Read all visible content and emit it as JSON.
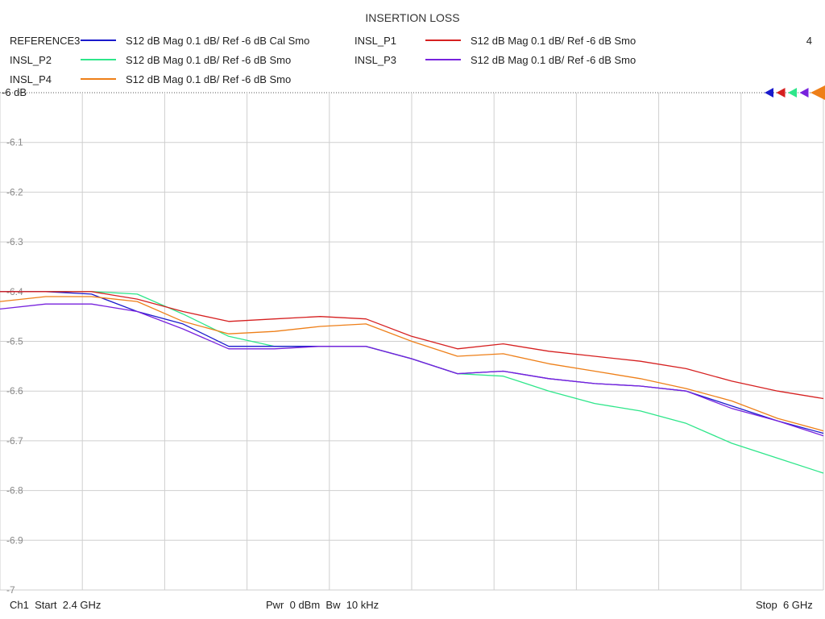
{
  "chart_data": {
    "type": "line",
    "title": "INSERTION LOSS",
    "channel_number": "4",
    "y_ticks": [
      "-6 dB",
      "-6.1",
      "-6.2",
      "-6.3",
      "-6.4",
      "-6.5",
      "-6.6",
      "-6.7",
      "-6.8",
      "-6.9",
      "-7"
    ],
    "ylim": [
      -7,
      -6
    ],
    "xlim": [
      2.4,
      6.0
    ],
    "x_unit": "GHz",
    "grid": true,
    "x_divisions": 10,
    "legend_position": "top",
    "x": [
      2.4,
      2.6,
      2.8,
      3.0,
      3.2,
      3.4,
      3.6,
      3.8,
      4.0,
      4.2,
      4.4,
      4.6,
      4.8,
      5.0,
      5.2,
      5.4,
      5.6,
      5.8,
      6.0
    ],
    "series": [
      {
        "name": "REFERENCE3",
        "trace": "S12  dB Mag  0.1 dB/ Ref -6 dB  Cal Smo",
        "color": "#1a1acc",
        "values": [
          -6.4,
          -6.4,
          -6.405,
          -6.44,
          -6.465,
          -6.51,
          -6.51,
          -6.51,
          -6.51,
          -6.535,
          -6.565,
          -6.56,
          -6.575,
          -6.585,
          -6.59,
          -6.6,
          -6.63,
          -6.66,
          -6.685
        ]
      },
      {
        "name": "INSL_P1",
        "trace": "S12  dB Mag  0.1 dB/ Ref -6 dB  Smo",
        "color": "#d62020",
        "values": [
          -6.4,
          -6.4,
          -6.4,
          -6.415,
          -6.44,
          -6.46,
          -6.455,
          -6.45,
          -6.455,
          -6.49,
          -6.515,
          -6.505,
          -6.52,
          -6.53,
          -6.54,
          -6.555,
          -6.58,
          -6.6,
          -6.615
        ]
      },
      {
        "name": "INSL_P2",
        "trace": "S12  dB Mag  0.1 dB/ Ref -6 dB  Smo",
        "color": "#2ee68a",
        "values": [
          -6.4,
          -6.4,
          -6.4,
          -6.405,
          -6.445,
          -6.49,
          -6.51,
          -6.51,
          -6.51,
          -6.535,
          -6.565,
          -6.57,
          -6.6,
          -6.625,
          -6.64,
          -6.665,
          -6.705,
          -6.735,
          -6.765
        ]
      },
      {
        "name": "INSL_P3",
        "trace": "S12  dB Mag  0.1 dB/ Ref -6 dB  Smo",
        "color": "#7722dd",
        "values": [
          -6.435,
          -6.425,
          -6.425,
          -6.44,
          -6.475,
          -6.515,
          -6.515,
          -6.51,
          -6.51,
          -6.535,
          -6.565,
          -6.56,
          -6.575,
          -6.585,
          -6.59,
          -6.6,
          -6.635,
          -6.66,
          -6.69
        ]
      },
      {
        "name": "INSL_P4",
        "trace": "S12  dB Mag  0.1 dB/ Ref -6 dB  Smo",
        "color": "#ee7f18",
        "values": [
          -6.42,
          -6.41,
          -6.41,
          -6.42,
          -6.46,
          -6.485,
          -6.48,
          -6.47,
          -6.465,
          -6.5,
          -6.53,
          -6.525,
          -6.545,
          -6.56,
          -6.575,
          -6.595,
          -6.62,
          -6.655,
          -6.68
        ]
      }
    ]
  },
  "footer": {
    "start": "Ch1  Start  2.4 GHz",
    "mid": "Pwr  0 dBm  Bw  10 kHz",
    "stop": "Stop  6 GHz"
  }
}
